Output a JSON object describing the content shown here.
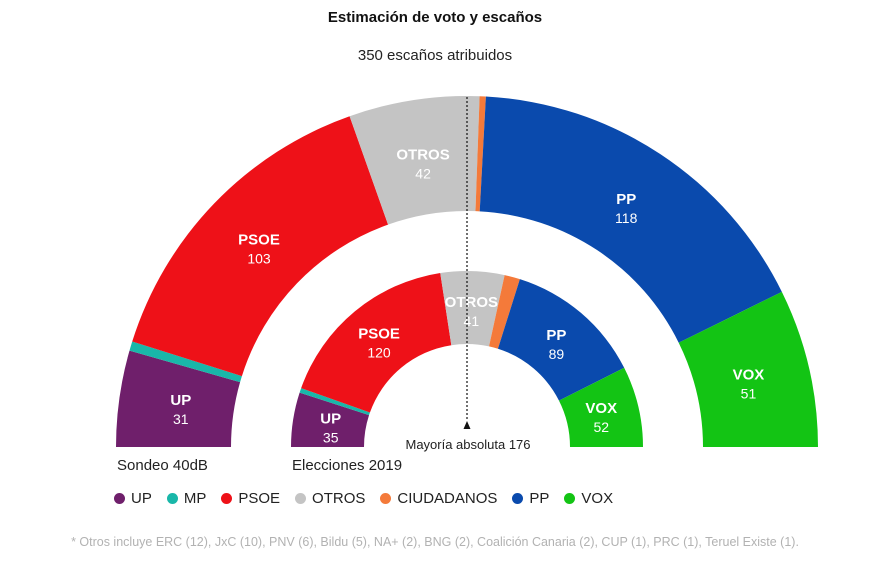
{
  "title": "Estimación de voto y escaños",
  "subtitle": "350 escaños atribuidos",
  "majority_label": "Mayoría absoluta 176",
  "footnote": "* Otros incluye ERC (12), JxC (10), PNV (6), Bildu (5), NA+ (2), BNG (2), Coalición Canaria (2), CUP (1), PRC (1), Teruel Existe (1).",
  "chart_data": {
    "type": "hemicycle",
    "total_seats": 350,
    "majority": 176,
    "parties": [
      {
        "name": "UP",
        "color": "#6f1f6b"
      },
      {
        "name": "MP",
        "color": "#19b7a9"
      },
      {
        "name": "PSOE",
        "color": "#ee1118"
      },
      {
        "name": "OTROS",
        "color": "#c4c4c4"
      },
      {
        "name": "CIUDADANOS",
        "color": "#f47a3a"
      },
      {
        "name": "PP",
        "color": "#0a4aad"
      },
      {
        "name": "VOX",
        "color": "#13c414"
      }
    ],
    "series": [
      {
        "name": "Sondeo 40dB",
        "ring": "outer",
        "seats": [
          {
            "party": "UP",
            "value": 31
          },
          {
            "party": "MP",
            "value": 3
          },
          {
            "party": "PSOE",
            "value": 103
          },
          {
            "party": "OTROS",
            "value": 42
          },
          {
            "party": "CIUDADANOS",
            "value": 2
          },
          {
            "party": "PP",
            "value": 118
          },
          {
            "party": "VOX",
            "value": 51
          }
        ]
      },
      {
        "name": "Elecciones 2019",
        "ring": "inner",
        "seats": [
          {
            "party": "UP",
            "value": 35
          },
          {
            "party": "MP",
            "value": 3
          },
          {
            "party": "PSOE",
            "value": 120
          },
          {
            "party": "OTROS",
            "value": 41
          },
          {
            "party": "CIUDADANOS",
            "value": 10
          },
          {
            "party": "PP",
            "value": 89
          },
          {
            "party": "VOX",
            "value": 52
          }
        ]
      }
    ],
    "legend_position": "bottom-left"
  }
}
